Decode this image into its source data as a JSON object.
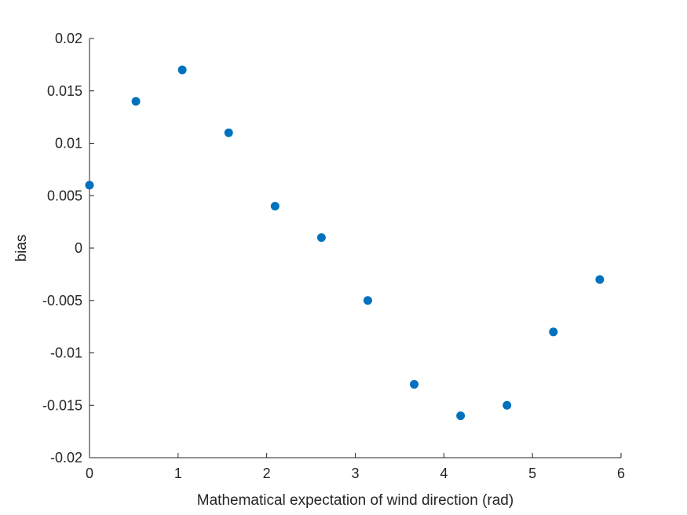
{
  "chart_data": {
    "type": "scatter",
    "xlabel": "Mathematical expectation of wind direction (rad)",
    "ylabel": "bias",
    "xlim": [
      0,
      6
    ],
    "ylim": [
      -0.02,
      0.02
    ],
    "x_ticks": [
      "0",
      "1",
      "2",
      "3",
      "4",
      "5",
      "6"
    ],
    "y_ticks": [
      "-0.02",
      "-0.015",
      "-0.01",
      "-0.005",
      "0",
      "0.005",
      "0.01",
      "0.015",
      "0.02"
    ],
    "grid": false,
    "legend": "none",
    "series": [
      {
        "color": "#0072BD",
        "marker": "filled-circle",
        "x": [
          0,
          0.5236,
          1.0472,
          1.5708,
          2.0944,
          2.618,
          3.1416,
          3.6652,
          4.1888,
          4.7124,
          5.236,
          5.7596
        ],
        "y": [
          0.006,
          0.014,
          0.017,
          0.011,
          0.004,
          0.001,
          -0.005,
          -0.013,
          -0.016,
          -0.015,
          -0.008,
          -0.003
        ]
      }
    ]
  }
}
